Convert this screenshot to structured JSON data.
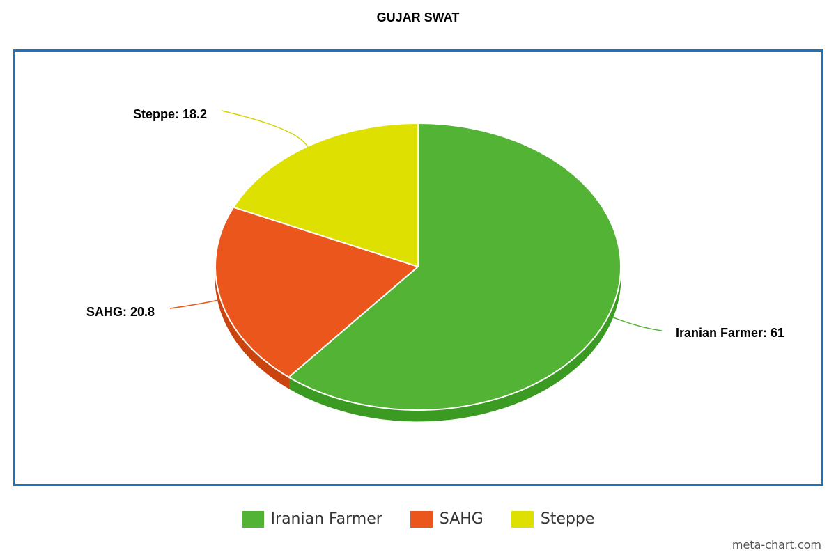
{
  "chart_data": {
    "type": "pie",
    "title": "GUJAR SWAT",
    "slices": [
      {
        "label": "Iranian Farmer",
        "value": 61,
        "color": "#52b335",
        "side_color": "#3b9a22",
        "line_color": "#52b335"
      },
      {
        "label": "SAHG",
        "value": 20.8,
        "color": "#ea561c",
        "side_color": "#c9440e",
        "line_color": "#ea561c"
      },
      {
        "label": "Steppe",
        "value": 18.2,
        "color": "#dde000",
        "side_color": "#b8ba00",
        "line_color": "#d4d400"
      }
    ],
    "data_labels": [
      "Iranian Farmer: 61",
      "SAHG: 20.8",
      "Steppe: 18.2"
    ],
    "legend": {
      "placement": "bottom-center",
      "items": [
        "Iranian Farmer",
        "SAHG",
        "Steppe"
      ]
    },
    "style": "3d"
  },
  "frame_color": "#1a73be",
  "watermark": "meta-chart.com"
}
